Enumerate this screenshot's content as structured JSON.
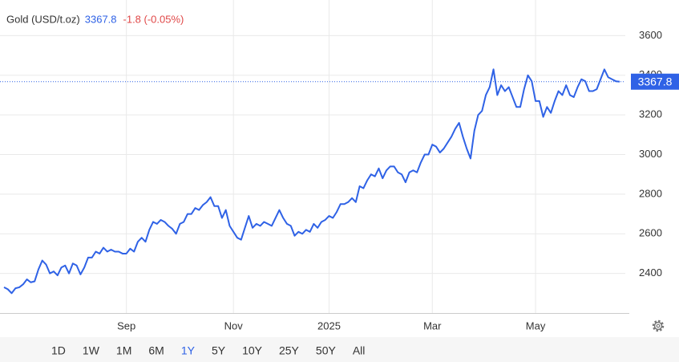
{
  "chart_data": {
    "type": "line",
    "title": "Gold (USD/t.oz)",
    "last_price": 3367.8,
    "change": "-1.8 (-0.05%)",
    "series": [
      {
        "name": "Gold",
        "color": "#2f62e6",
        "values": [
          2330,
          2320,
          2300,
          2325,
          2330,
          2345,
          2370,
          2355,
          2360,
          2420,
          2465,
          2445,
          2400,
          2410,
          2390,
          2430,
          2440,
          2400,
          2450,
          2440,
          2395,
          2430,
          2480,
          2480,
          2510,
          2500,
          2530,
          2510,
          2520,
          2510,
          2510,
          2500,
          2500,
          2525,
          2510,
          2560,
          2580,
          2560,
          2620,
          2660,
          2650,
          2670,
          2660,
          2640,
          2625,
          2600,
          2650,
          2660,
          2700,
          2700,
          2730,
          2720,
          2745,
          2760,
          2785,
          2740,
          2740,
          2680,
          2720,
          2640,
          2610,
          2580,
          2570,
          2630,
          2690,
          2630,
          2650,
          2640,
          2660,
          2650,
          2640,
          2680,
          2720,
          2680,
          2650,
          2640,
          2590,
          2610,
          2600,
          2620,
          2610,
          2650,
          2630,
          2660,
          2670,
          2690,
          2680,
          2710,
          2750,
          2750,
          2760,
          2780,
          2760,
          2840,
          2830,
          2870,
          2900,
          2890,
          2930,
          2880,
          2920,
          2940,
          2940,
          2910,
          2900,
          2860,
          2910,
          2920,
          2910,
          2960,
          3000,
          3000,
          3050,
          3040,
          3010,
          3030,
          3060,
          3090,
          3130,
          3160,
          3090,
          3030,
          2980,
          3120,
          3200,
          3220,
          3300,
          3340,
          3430,
          3300,
          3350,
          3320,
          3340,
          3290,
          3240,
          3240,
          3330,
          3400,
          3370,
          3270,
          3270,
          3190,
          3240,
          3210,
          3270,
          3320,
          3300,
          3350,
          3300,
          3290,
          3340,
          3380,
          3370,
          3320,
          3320,
          3330,
          3380,
          3430,
          3390,
          3380,
          3370,
          3367.8
        ]
      }
    ],
    "categories": [
      null,
      null,
      null,
      null,
      null,
      null,
      null,
      null,
      null,
      null,
      null,
      null,
      null,
      null,
      null,
      null,
      null,
      null,
      null,
      null,
      null,
      null,
      null,
      null,
      null,
      null,
      null,
      null,
      null,
      null,
      null,
      null,
      "Sep",
      null,
      null,
      null,
      null,
      null,
      null,
      null,
      null,
      null,
      null,
      null,
      null,
      null,
      null,
      null,
      null,
      null,
      null,
      null,
      null,
      null,
      null,
      null,
      null,
      null,
      null,
      null,
      "Nov",
      null,
      null,
      null,
      null,
      null,
      null,
      null,
      null,
      null,
      null,
      null,
      null,
      null,
      null,
      null,
      null,
      null,
      null,
      null,
      null,
      null,
      null,
      null,
      null,
      "2025",
      null,
      null,
      null,
      null,
      null,
      null,
      null,
      null,
      null,
      null,
      null,
      null,
      null,
      null,
      null,
      null,
      null,
      null,
      null,
      null,
      null,
      null,
      null,
      null,
      null,
      null,
      "Mar",
      null,
      null,
      null,
      null,
      null,
      null,
      null,
      null,
      null,
      null,
      null,
      null,
      null,
      null,
      null,
      null,
      null,
      null,
      null,
      null,
      null,
      null,
      null,
      null,
      null,
      null,
      "May",
      null,
      null,
      null,
      null,
      null,
      null,
      null,
      null,
      null,
      null,
      null,
      null,
      null,
      null,
      null,
      null,
      null,
      null,
      null,
      null,
      null,
      null
    ],
    "ylim": [
      2200,
      3780
    ],
    "yticks": [
      2400,
      2600,
      2800,
      3000,
      3200,
      3400,
      3600
    ],
    "grid": true,
    "ranges": [
      "1D",
      "1W",
      "1M",
      "6M",
      "1Y",
      "5Y",
      "10Y",
      "25Y",
      "50Y",
      "All"
    ],
    "active_range": "1Y"
  }
}
